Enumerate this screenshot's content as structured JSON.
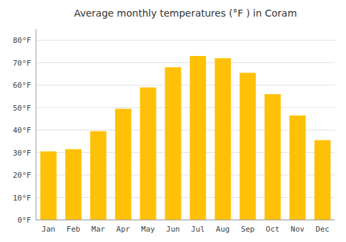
{
  "chart_data": {
    "type": "bar",
    "title": "Average monthly temperatures (°F ) in Coram",
    "categories": [
      "Jan",
      "Feb",
      "Mar",
      "Apr",
      "May",
      "Jun",
      "Jul",
      "Aug",
      "Sep",
      "Oct",
      "Nov",
      "Dec"
    ],
    "values": [
      30.5,
      31.5,
      39.5,
      49.5,
      59.0,
      68.0,
      73.0,
      72.0,
      65.5,
      56.0,
      46.5,
      35.5
    ],
    "color": "#FFC107",
    "ylim": [
      0,
      85
    ],
    "yticks": [
      {
        "value": 0,
        "label": "0°F"
      },
      {
        "value": 10,
        "label": "10°F"
      },
      {
        "value": 20,
        "label": "20°F"
      },
      {
        "value": 30,
        "label": "30°F"
      },
      {
        "value": 40,
        "label": "40°F"
      },
      {
        "value": 50,
        "label": "50°F"
      },
      {
        "value": 60,
        "label": "60°F"
      },
      {
        "value": 70,
        "label": "70°F"
      },
      {
        "value": 80,
        "label": "80°F"
      }
    ],
    "grid": true
  }
}
